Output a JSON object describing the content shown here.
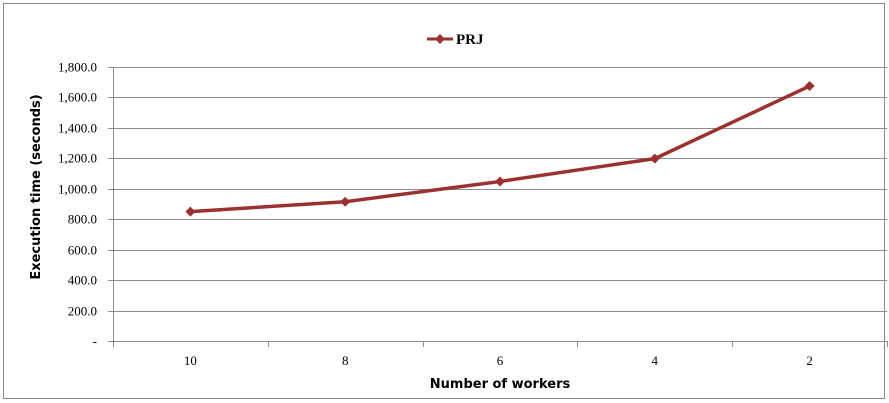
{
  "chart_data": {
    "type": "line",
    "categories": [
      "10",
      "8",
      "6",
      "4",
      "2"
    ],
    "series": [
      {
        "name": "PRJ",
        "values": [
          850,
          915,
          1048,
          1198,
          1675
        ],
        "color": "#9b3232"
      }
    ],
    "xlabel": "Number of workers",
    "ylabel": "Execution time (seconds)",
    "ylim": [
      0,
      1800
    ],
    "y_ticks": [
      {
        "value": 0,
        "label": "-"
      },
      {
        "value": 200,
        "label": "200.0"
      },
      {
        "value": 400,
        "label": "400.0"
      },
      {
        "value": 600,
        "label": "600.0"
      },
      {
        "value": 800,
        "label": "800.0"
      },
      {
        "value": 1000,
        "label": "1,000.0"
      },
      {
        "value": 1200,
        "label": "1,200.0"
      },
      {
        "value": 1400,
        "label": "1,400.0"
      },
      {
        "value": 1600,
        "label": "1,600.0"
      },
      {
        "value": 1800,
        "label": "1,800.0"
      }
    ],
    "grid": true,
    "legend_position": "top-center",
    "marker": "diamond"
  }
}
